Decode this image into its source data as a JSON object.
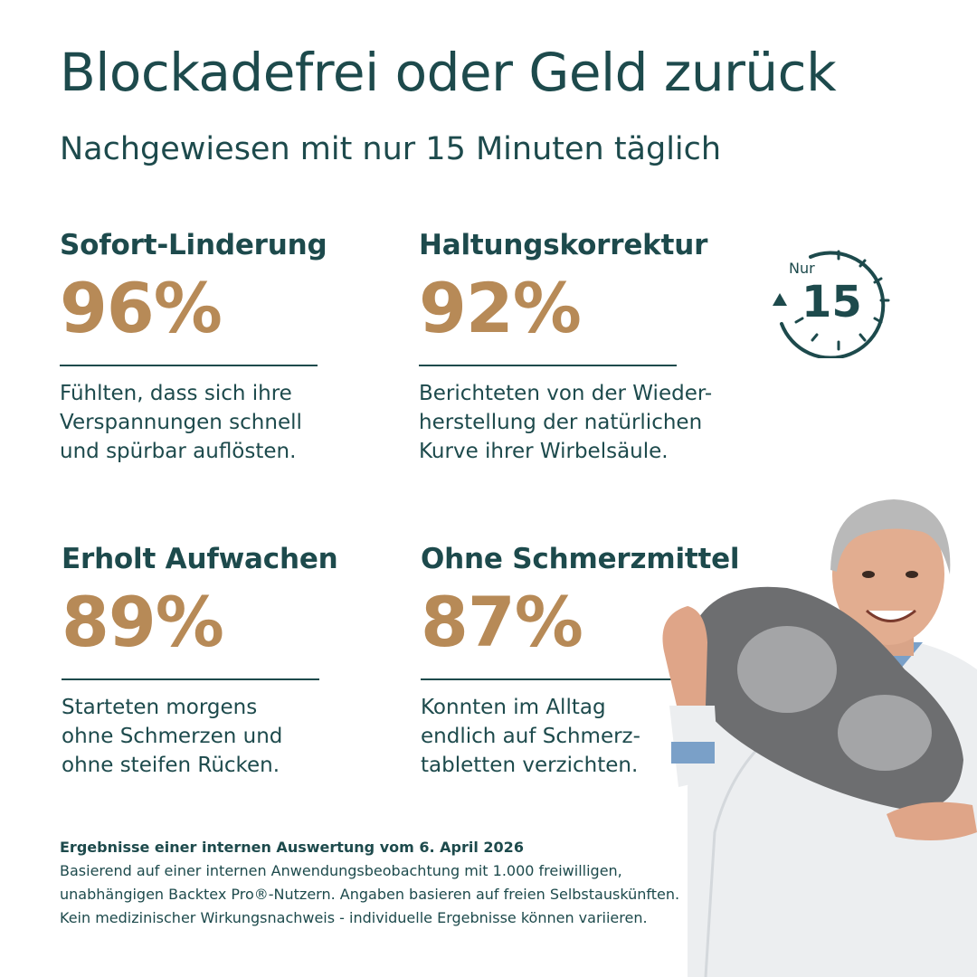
{
  "header": {
    "title": "Blockadefrei oder Geld zurück",
    "subtitle": "Nachgewiesen mit nur 15 Minuten täglich"
  },
  "stats": [
    {
      "heading": "Sofort-Linderung",
      "value": "96%",
      "description": "Fühlten, dass sich ihre\nVerspannungen schnell\nund spürbar auflösten."
    },
    {
      "heading": "Haltungskorrektur",
      "value": "92%",
      "description": "Berichteten von der Wieder-\nherstellung der natürlichen\nKurve ihrer Wirbelsäule."
    },
    {
      "heading": "Erholt Aufwachen",
      "value": "89%",
      "description": "Starteten morgens\nohne Schmerzen und\nohne steifen Rücken."
    },
    {
      "heading": "Ohne Schmerzmittel",
      "value": "87%",
      "description": "Konnten im Alltag\nendlich auf Schmerz-\ntabletten verzichten."
    }
  ],
  "badge": {
    "prefix": "Nur",
    "number": "15"
  },
  "footnote": {
    "heading": "Ergebnisse einer internen Auswertung vom 6. April 2026",
    "body": "Basierend auf einer internen Anwendungsbeobachtung mit 1.000 freiwilligen,\nunabhängigen Backtex Pro®-Nutzern. Angaben basieren auf freien Selbstauskünften.\nKein medizinischer Wirkungsnachweis - individuelle Ergebnisse können variieren."
  },
  "colors": {
    "primary": "#1d4a4c",
    "accent": "#b78a57",
    "background": "#ffffff"
  },
  "image": {
    "icon": "doctor-holding-pillow-image"
  }
}
